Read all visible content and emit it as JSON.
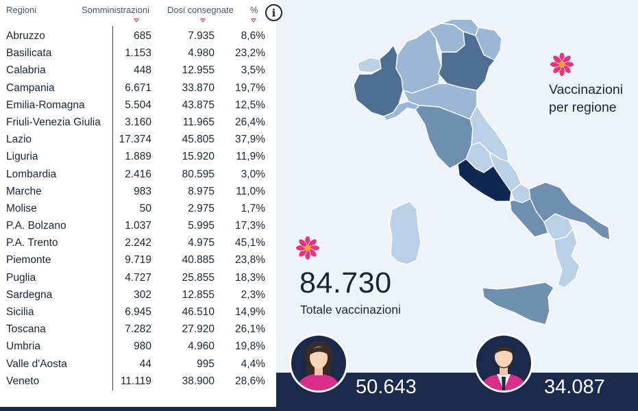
{
  "table": {
    "headers": {
      "region": "Regioni",
      "administrations": "Somministrazioni",
      "doses": "Dosi consegnate",
      "percent": "%"
    },
    "info_icon": "info-icon",
    "rows": [
      {
        "region": "Abruzzo",
        "administrations": "685",
        "doses": "7.935",
        "percent": "8,6%"
      },
      {
        "region": "Basilicata",
        "administrations": "1.153",
        "doses": "4.980",
        "percent": "23,2%"
      },
      {
        "region": "Calabria",
        "administrations": "448",
        "doses": "12.955",
        "percent": "3,5%"
      },
      {
        "region": "Campania",
        "administrations": "6.671",
        "doses": "33.870",
        "percent": "19,7%"
      },
      {
        "region": "Emilia-Romagna",
        "administrations": "5.504",
        "doses": "43.875",
        "percent": "12,5%"
      },
      {
        "region": "Friuli-Venezia Giulia",
        "administrations": "3.160",
        "doses": "11.965",
        "percent": "26,4%"
      },
      {
        "region": "Lazio",
        "administrations": "17.374",
        "doses": "45.805",
        "percent": "37,9%"
      },
      {
        "region": "Liguria",
        "administrations": "1.889",
        "doses": "15.920",
        "percent": "11,9%"
      },
      {
        "region": "Lombardia",
        "administrations": "2.416",
        "doses": "80.595",
        "percent": "3,0%"
      },
      {
        "region": "Marche",
        "administrations": "983",
        "doses": "8.975",
        "percent": "11,0%"
      },
      {
        "region": "Molise",
        "administrations": "50",
        "doses": "2.975",
        "percent": "1,7%"
      },
      {
        "region": "P.A. Bolzano",
        "administrations": "1.037",
        "doses": "5.995",
        "percent": "17,3%"
      },
      {
        "region": "P.A. Trento",
        "administrations": "2.242",
        "doses": "4.975",
        "percent": "45,1%"
      },
      {
        "region": "Piemonte",
        "administrations": "9.719",
        "doses": "40.885",
        "percent": "23,8%"
      },
      {
        "region": "Puglia",
        "administrations": "4.727",
        "doses": "25.855",
        "percent": "18,3%"
      },
      {
        "region": "Sardegna",
        "administrations": "302",
        "doses": "12.855",
        "percent": "2,3%"
      },
      {
        "region": "Sicilia",
        "administrations": "6.945",
        "doses": "46.510",
        "percent": "14,9%"
      },
      {
        "region": "Toscana",
        "administrations": "7.282",
        "doses": "27.920",
        "percent": "26,1%"
      },
      {
        "region": "Umbria",
        "administrations": "980",
        "doses": "4.960",
        "percent": "19,8%"
      },
      {
        "region": "Valle d'Aosta",
        "administrations": "44",
        "doses": "995",
        "percent": "4,4%"
      },
      {
        "region": "Veneto",
        "administrations": "11.119",
        "doses": "38.900",
        "percent": "28,6%"
      }
    ]
  },
  "map": {
    "title_line1": "Vaccinazioni",
    "title_line2": "per regione",
    "flower_icon": "flower-icon",
    "colors": {
      "level1": "#b9d0e6",
      "level2": "#9cb7d3",
      "level3": "#6f8fb1",
      "level4": "#4f6f92",
      "level5": "#0f2852"
    }
  },
  "totals": {
    "value": "84.730",
    "label": "Totale vaccinazioni",
    "women": {
      "icon": "woman-avatar-icon",
      "value": "50.643"
    },
    "men": {
      "icon": "man-avatar-icon",
      "value": "34.087"
    }
  },
  "colors": {
    "navy": "#1b2a4a",
    "accent": "#e8327e",
    "background": "#eef3f9"
  }
}
